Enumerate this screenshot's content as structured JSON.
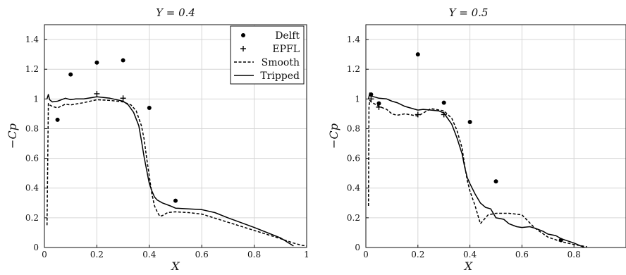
{
  "chart_data": [
    {
      "type": "line",
      "title": "Y = 0.4",
      "xlabel": "X",
      "ylabel": "−Cp",
      "xlim": [
        0,
        1
      ],
      "ylim": [
        0,
        1.5
      ],
      "xticks": [
        "0",
        "0.2",
        "0.4",
        "0.6",
        "0.8",
        "1"
      ],
      "xtick_values": [
        0,
        0.2,
        0.4,
        0.6,
        0.8,
        1.0
      ],
      "yticks": [
        "0",
        "0.2",
        "0.4",
        "0.6",
        "0.8",
        "1",
        "1.2",
        "1.4"
      ],
      "ytick_values": [
        0,
        0.2,
        0.4,
        0.6,
        0.8,
        1.0,
        1.2,
        1.4
      ],
      "grid": true,
      "legend": {
        "placement": "top-right",
        "entries": [
          {
            "label": "Delft",
            "marker": "dot"
          },
          {
            "label": "EPFL",
            "marker": "plus"
          },
          {
            "label": "Smooth",
            "line": "dashed"
          },
          {
            "label": "Tripped",
            "line": "solid"
          }
        ]
      },
      "series": [
        {
          "name": "Delft",
          "kind": "scatter",
          "marker": "dot",
          "x": [
            0.05,
            0.1,
            0.2,
            0.3,
            0.4,
            0.5
          ],
          "y": [
            0.86,
            1.165,
            1.245,
            1.26,
            0.94,
            0.315
          ]
        },
        {
          "name": "EPFL",
          "kind": "scatter",
          "marker": "plus",
          "x": [
            0.2,
            0.3
          ],
          "y": [
            1.035,
            1.005
          ]
        },
        {
          "name": "Smooth",
          "kind": "line",
          "style": "dashed",
          "x": [
            0.01,
            0.015,
            0.02,
            0.03,
            0.05,
            0.08,
            0.1,
            0.15,
            0.2,
            0.25,
            0.3,
            0.33,
            0.35,
            0.37,
            0.38,
            0.39,
            0.4,
            0.41,
            0.42,
            0.43,
            0.44,
            0.45,
            0.47,
            0.5,
            0.55,
            0.6,
            0.7,
            0.8,
            0.9,
            0.95,
            0.98,
            1.0
          ],
          "y": [
            0.15,
            0.97,
            0.96,
            0.95,
            0.94,
            0.965,
            0.96,
            0.975,
            0.995,
            0.99,
            0.98,
            0.96,
            0.92,
            0.82,
            0.73,
            0.6,
            0.48,
            0.36,
            0.28,
            0.24,
            0.21,
            0.215,
            0.235,
            0.24,
            0.235,
            0.225,
            0.17,
            0.115,
            0.06,
            0.03,
            0.015,
            0.01
          ]
        },
        {
          "name": "Tripped",
          "kind": "line",
          "style": "solid",
          "x": [
            0.01,
            0.015,
            0.02,
            0.03,
            0.05,
            0.08,
            0.1,
            0.12,
            0.15,
            0.2,
            0.25,
            0.3,
            0.32,
            0.34,
            0.36,
            0.37,
            0.38,
            0.39,
            0.4,
            0.41,
            0.42,
            0.43,
            0.45,
            0.48,
            0.5,
            0.55,
            0.6,
            0.65,
            0.7,
            0.8,
            0.9,
            0.95
          ],
          "y": [
            1.0,
            1.03,
            0.995,
            0.98,
            0.985,
            1.005,
            0.995,
            1.0,
            1.0,
            1.015,
            1.005,
            0.985,
            0.96,
            0.91,
            0.82,
            0.72,
            0.61,
            0.52,
            0.43,
            0.38,
            0.34,
            0.32,
            0.3,
            0.28,
            0.265,
            0.26,
            0.255,
            0.235,
            0.2,
            0.135,
            0.065,
            0.01
          ]
        }
      ]
    },
    {
      "type": "line",
      "title": "Y = 0.5",
      "xlabel": "X",
      "ylabel": "−Cp",
      "xlim": [
        0,
        1
      ],
      "ylim": [
        0,
        1.5
      ],
      "xticks": [
        "0",
        "0.2",
        "0.4",
        "0.6",
        "0.8"
      ],
      "xtick_values": [
        0,
        0.2,
        0.4,
        0.6,
        0.8
      ],
      "yticks": [
        "0",
        "0.2",
        "0.4",
        "0.6",
        "0.8",
        "1",
        "1.2",
        "1.4"
      ],
      "ytick_values": [
        0,
        0.2,
        0.4,
        0.6,
        0.8,
        1.0,
        1.2,
        1.4
      ],
      "grid": true,
      "series": [
        {
          "name": "Delft",
          "kind": "scatter",
          "marker": "dot",
          "x": [
            0.02,
            0.05,
            0.2,
            0.3,
            0.4,
            0.5,
            0.75
          ],
          "y": [
            1.03,
            0.97,
            1.3,
            0.975,
            0.845,
            0.445,
            0.05
          ]
        },
        {
          "name": "EPFL",
          "kind": "scatter",
          "marker": "plus",
          "x": [
            0.02,
            0.05,
            0.2,
            0.3
          ],
          "y": [
            1.0,
            0.945,
            0.895,
            0.895
          ]
        },
        {
          "name": "Smooth",
          "kind": "line",
          "style": "dashed",
          "x": [
            0.01,
            0.012,
            0.015,
            0.02,
            0.03,
            0.05,
            0.08,
            0.1,
            0.12,
            0.15,
            0.2,
            0.25,
            0.3,
            0.33,
            0.35,
            0.37,
            0.38,
            0.39,
            0.4,
            0.42,
            0.44,
            0.45,
            0.47,
            0.5,
            0.55,
            0.6,
            0.65,
            0.7,
            0.75,
            0.8,
            0.85
          ],
          "y": [
            0.28,
            0.95,
            0.99,
            0.98,
            0.97,
            0.95,
            0.93,
            0.9,
            0.89,
            0.9,
            0.885,
            0.935,
            0.92,
            0.87,
            0.79,
            0.67,
            0.55,
            0.45,
            0.38,
            0.28,
            0.16,
            0.18,
            0.22,
            0.23,
            0.23,
            0.22,
            0.13,
            0.07,
            0.04,
            0.02,
            0.005
          ]
        },
        {
          "name": "Tripped",
          "kind": "line",
          "style": "solid",
          "x": [
            0.01,
            0.015,
            0.02,
            0.03,
            0.05,
            0.08,
            0.1,
            0.12,
            0.15,
            0.2,
            0.22,
            0.25,
            0.28,
            0.3,
            0.33,
            0.35,
            0.37,
            0.38,
            0.39,
            0.4,
            0.42,
            0.44,
            0.46,
            0.48,
            0.5,
            0.53,
            0.55,
            0.58,
            0.6,
            0.63,
            0.65,
            0.68,
            0.7,
            0.73,
            0.75,
            0.8,
            0.84
          ],
          "y": [
            1.0,
            1.04,
            1.02,
            1.015,
            1.005,
            1.0,
            0.985,
            0.975,
            0.95,
            0.925,
            0.93,
            0.925,
            0.92,
            0.905,
            0.83,
            0.74,
            0.63,
            0.54,
            0.47,
            0.43,
            0.36,
            0.3,
            0.27,
            0.26,
            0.2,
            0.19,
            0.16,
            0.14,
            0.135,
            0.14,
            0.13,
            0.11,
            0.09,
            0.08,
            0.06,
            0.03,
            0.0
          ]
        }
      ]
    }
  ]
}
